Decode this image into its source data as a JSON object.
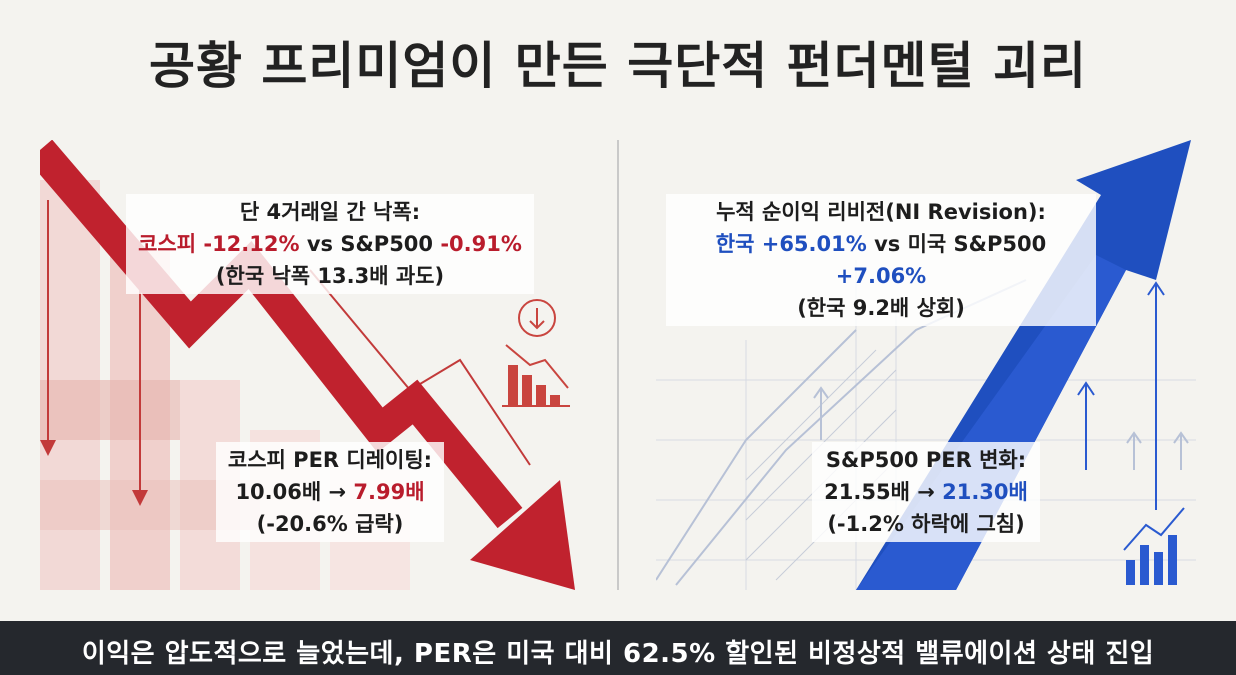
{
  "title": "공황 프리미엄이 만든 극단적 펀더멘털 괴리",
  "left": {
    "drop_heading": "단 4거래일 간 낙폭:",
    "drop_kospi_label": "코스피",
    "drop_kospi_value": "-12.12%",
    "drop_vs": "vs S&P500",
    "drop_sp_value": "-0.91%",
    "drop_note": "(한국 낙폭 13.3배 과도)",
    "per_heading": "코스피 PER 디레이팅:",
    "per_from": "10.06배 →",
    "per_to": "7.99배",
    "per_note": "(-20.6% 급락)"
  },
  "right": {
    "ni_heading": "누적 순이익 리비전(NI Revision):",
    "ni_korea_label": "한국",
    "ni_korea_value": "+65.01%",
    "ni_vs": "vs 미국 S&P500",
    "ni_us_value": "+7.06%",
    "ni_note": "(한국 9.2배 상회)",
    "per_heading": "S&P500 PER 변화:",
    "per_from": "21.55배 →",
    "per_to": "21.30배",
    "per_note": "(-1.2% 하락에 그침)"
  },
  "footer": "이익은 압도적으로 늘었는데, PER은 미국 대비 62.5% 할인된 비정상적 밸류에이션 상태 진입",
  "colors": {
    "red": "#b91c2c",
    "blue": "#1f4fbf",
    "footer_bg": "#25282d"
  },
  "icons": [
    "down-arrow-circle-icon",
    "falling-bar-chart-icon",
    "rising-bar-chart-icon",
    "up-arrow-icon"
  ]
}
